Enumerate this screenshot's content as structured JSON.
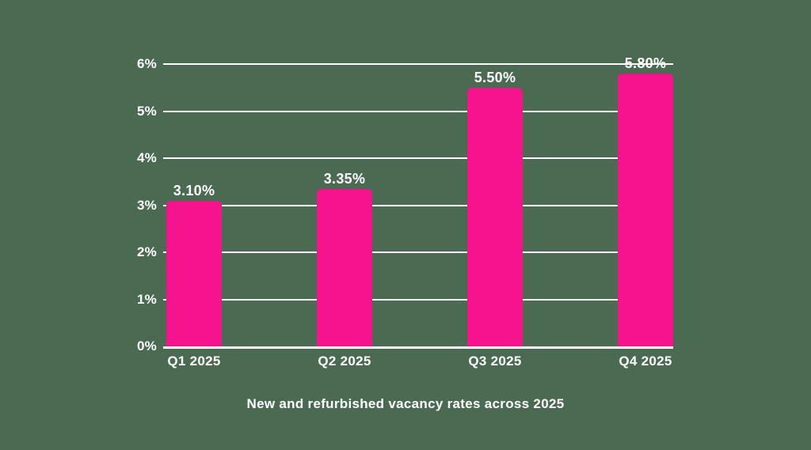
{
  "chart_data": {
    "type": "bar",
    "caption": "New and refurbished vacancy rates across 2025",
    "categories": [
      "Q1 2025",
      "Q2 2025",
      "Q3 2025",
      "Q4 2025"
    ],
    "values": [
      3.1,
      3.35,
      5.5,
      5.8
    ],
    "value_labels": [
      "3.10%",
      "3.35%",
      "5.50%",
      "5.80%"
    ],
    "y_ticks": [
      {
        "value": 0,
        "label": "0%"
      },
      {
        "value": 1,
        "label": "1%"
      },
      {
        "value": 2,
        "label": "2%"
      },
      {
        "value": 3,
        "label": "3%"
      },
      {
        "value": 4,
        "label": "4%"
      },
      {
        "value": 5,
        "label": "5%"
      },
      {
        "value": 6,
        "label": "6%"
      }
    ],
    "ylim": [
      0,
      6
    ],
    "grid": true,
    "legend": "none",
    "colors": {
      "bar": "#F4148C",
      "background": "#4A6B52",
      "text": "#FFFFFF",
      "gridline": "#FFFFFF"
    }
  }
}
